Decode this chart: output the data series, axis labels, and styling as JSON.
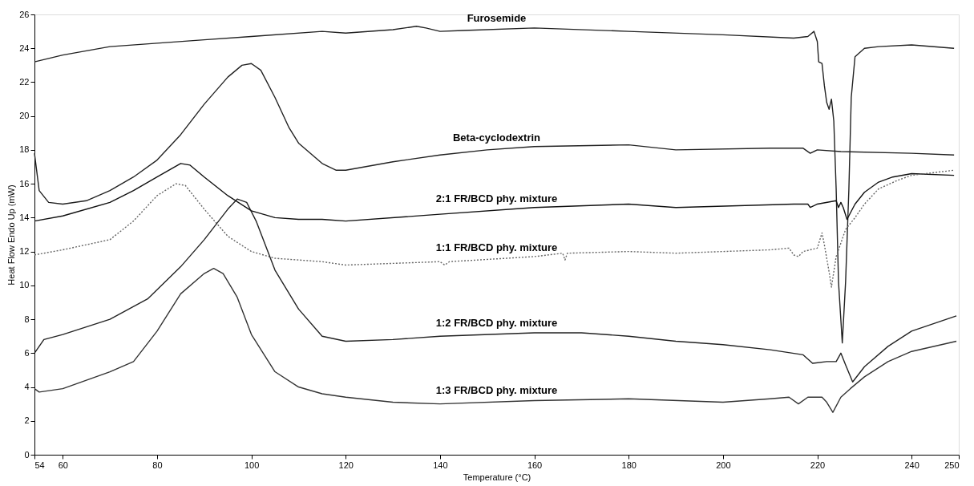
{
  "chart_data": {
    "type": "line",
    "xlabel": "Temperature (°C)",
    "ylabel": "Heat Flow Endo Up (mW)",
    "xlim": [
      54,
      250
    ],
    "xticks": [
      54,
      60,
      80,
      100,
      120,
      140,
      160,
      180,
      200,
      220,
      240,
      250
    ],
    "ylim": [
      0,
      26
    ],
    "yticks": [
      0,
      2,
      4,
      6,
      8,
      10,
      12,
      14,
      16,
      18,
      20,
      22,
      24,
      26
    ],
    "grid": false,
    "legend": false,
    "marker": "none",
    "series": [
      {
        "name": "Furosemide",
        "color": "#222222",
        "line_style": "solid",
        "x": [
          54,
          60,
          70,
          80,
          90,
          100,
          115,
          120,
          130,
          135,
          137,
          140,
          145,
          160,
          180,
          200,
          215,
          218,
          219.3,
          220,
          220.3,
          221,
          221.5,
          222,
          222.5,
          223,
          223.5,
          224,
          224.5,
          225.3,
          226,
          226.7,
          227.2,
          228,
          230,
          233,
          240,
          249
        ],
        "values": [
          23.2,
          23.6,
          24.1,
          24.3,
          24.5,
          24.7,
          25.0,
          24.9,
          25.1,
          25.3,
          25.2,
          25.0,
          25.05,
          25.2,
          25.0,
          24.8,
          24.6,
          24.7,
          25.0,
          24.4,
          23.2,
          23.1,
          21.8,
          20.8,
          20.4,
          21.0,
          19.7,
          15.7,
          10.2,
          6.6,
          10.2,
          15.7,
          21.1,
          23.5,
          24.0,
          24.1,
          24.2,
          24.0
        ]
      },
      {
        "name": "Beta-cyclodextrin",
        "color": "#222222",
        "line_style": "solid",
        "x": [
          54,
          55,
          57,
          60,
          65,
          70,
          75,
          80,
          85,
          90,
          95,
          98,
          100,
          102,
          105,
          108,
          110,
          115,
          118,
          120,
          130,
          140,
          150,
          160,
          180,
          190,
          210,
          217,
          218.5,
          220,
          225,
          240,
          249
        ],
        "values": [
          17.8,
          15.6,
          14.9,
          14.8,
          15.0,
          15.6,
          16.4,
          17.4,
          18.9,
          20.7,
          22.3,
          23.0,
          23.1,
          22.7,
          21.1,
          19.3,
          18.4,
          17.2,
          16.8,
          16.8,
          17.3,
          17.7,
          18.0,
          18.2,
          18.3,
          18.0,
          18.1,
          18.1,
          17.8,
          18.0,
          17.9,
          17.8,
          17.7
        ]
      },
      {
        "name": "2:1 FR/BCD phy. mixture",
        "color": "#111111",
        "line_style": "solid",
        "x": [
          54,
          60,
          70,
          75,
          80,
          85,
          87,
          90,
          95,
          100,
          105,
          110,
          115,
          120,
          140,
          160,
          180,
          190,
          215,
          218,
          218.5,
          220,
          224,
          224.5,
          225,
          225.5,
          226.3,
          228,
          230,
          233,
          236,
          240,
          249
        ],
        "values": [
          13.8,
          14.1,
          14.9,
          15.6,
          16.4,
          17.2,
          17.1,
          16.4,
          15.3,
          14.4,
          14.0,
          13.9,
          13.9,
          13.8,
          14.2,
          14.6,
          14.8,
          14.6,
          14.8,
          14.8,
          14.6,
          14.8,
          15.0,
          14.6,
          14.9,
          14.6,
          13.9,
          14.8,
          15.5,
          16.1,
          16.4,
          16.6,
          16.5
        ]
      },
      {
        "name": "1:1 FR/BCD phy. mixture",
        "color": "#666666",
        "line_style": "dotted",
        "x": [
          54,
          60,
          70,
          75,
          80,
          84,
          86,
          90,
          95,
          100,
          105,
          110,
          115,
          120,
          140,
          141,
          142,
          160,
          166,
          166.5,
          167,
          180,
          190,
          210,
          214,
          215,
          216,
          217,
          220,
          221,
          221.5,
          222.5,
          223,
          224,
          226,
          228,
          230,
          233,
          237,
          240,
          249
        ],
        "values": [
          11.8,
          12.1,
          12.7,
          13.8,
          15.3,
          16.0,
          15.9,
          14.5,
          12.9,
          12.0,
          11.6,
          11.5,
          11.4,
          11.2,
          11.4,
          11.2,
          11.4,
          11.7,
          11.9,
          11.5,
          11.9,
          12.0,
          11.9,
          12.1,
          12.2,
          11.8,
          11.7,
          12.0,
          12.2,
          13.1,
          12.4,
          10.8,
          9.9,
          11.7,
          13.3,
          14.0,
          14.8,
          15.7,
          16.2,
          16.5,
          16.8
        ]
      },
      {
        "name": "1:2 FR/BCD phy. mixture",
        "color": "#222222",
        "line_style": "solid",
        "x": [
          54,
          56,
          60,
          70,
          78,
          85,
          90,
          95,
          97,
          99,
          101,
          105,
          110,
          115,
          120,
          130,
          140,
          160,
          170,
          180,
          190,
          200,
          210,
          217,
          219,
          222,
          224,
          225,
          226,
          227.5,
          230,
          235,
          240,
          249.5
        ],
        "values": [
          6.0,
          6.8,
          7.1,
          8.0,
          9.2,
          11.1,
          12.7,
          14.5,
          15.1,
          14.9,
          13.8,
          10.9,
          8.6,
          7.0,
          6.7,
          6.8,
          7.0,
          7.2,
          7.2,
          7.0,
          6.7,
          6.5,
          6.2,
          5.9,
          5.4,
          5.5,
          5.5,
          6.0,
          5.3,
          4.3,
          5.2,
          6.4,
          7.3,
          8.2
        ]
      },
      {
        "name": "1:3 FR/BCD phy. mixture",
        "color": "#333333",
        "line_style": "solid",
        "x": [
          54,
          55,
          60,
          70,
          75,
          80,
          85,
          90,
          92,
          94,
          97,
          100,
          105,
          110,
          115,
          120,
          130,
          140,
          160,
          180,
          200,
          210,
          214,
          216,
          218,
          221,
          222,
          223.3,
          225,
          227,
          230,
          235,
          240,
          249.5
        ],
        "values": [
          3.9,
          3.7,
          3.9,
          4.9,
          5.5,
          7.3,
          9.5,
          10.7,
          11.0,
          10.7,
          9.3,
          7.1,
          4.9,
          4.0,
          3.6,
          3.4,
          3.1,
          3.0,
          3.2,
          3.3,
          3.1,
          3.3,
          3.4,
          3.0,
          3.4,
          3.4,
          3.1,
          2.5,
          3.4,
          3.9,
          4.6,
          5.5,
          6.1,
          6.7
        ]
      }
    ]
  }
}
